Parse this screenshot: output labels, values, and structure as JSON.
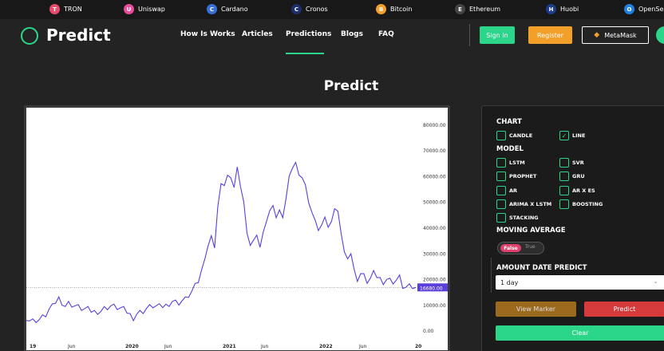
{
  "ticker": [
    {
      "label": "TRON",
      "color": "#e84b6c",
      "glyph": "T",
      "left": 0
    },
    {
      "label": "Uniswap",
      "color": "#e84b9a",
      "glyph": "U",
      "left": 0
    },
    {
      "label": "Cardano",
      "color": "#3b6fd8",
      "glyph": "C",
      "left": 0
    },
    {
      "label": "Cronos",
      "color": "#1c2f6b",
      "glyph": "C",
      "left": 0
    },
    {
      "label": "Bitcoin",
      "color": "#f2a029",
      "glyph": "B",
      "left": 0
    },
    {
      "label": "Ethereum",
      "color": "#444",
      "glyph": "E",
      "left": 0
    },
    {
      "label": "Huobi",
      "color": "#1c3c8a",
      "glyph": "H",
      "left": 0
    },
    {
      "label": "OpenSea",
      "color": "#2081e2",
      "glyph": "O",
      "left": 0
    }
  ],
  "header": {
    "logo": "Predict",
    "nav": [
      "How Is Works",
      "Articles",
      "Predictions",
      "Blogs",
      "FAQ"
    ],
    "signin": "Sign In",
    "register": "Register",
    "metamask": "MetaMask"
  },
  "page_title": "Predict",
  "panel": {
    "chart_title": "CHART",
    "candle": "CANDLE",
    "line": "LINE",
    "model_title": "MODEL",
    "models": [
      "LSTM",
      "SVR",
      "PROPHET",
      "GRU",
      "AR",
      "AR X ES",
      "ARIMA X LSTM",
      "BOOSTING",
      "STACKING"
    ],
    "ma_title": "MOVING AVERAGE",
    "toggle_false": "False",
    "toggle_true": "True",
    "amount_title": "AMOUNT DATE PREDICT",
    "amount_value": "1 day",
    "view_marker": "View Marker",
    "predict": "Predict",
    "clear": "Clear"
  },
  "colors": {
    "accent": "#2bd68a",
    "register": "#f2a029",
    "line": "#5b3fdc",
    "predict": "#d63a3a",
    "marker": "#9b6a1e"
  },
  "chart_data": {
    "type": "line",
    "title": "",
    "xlabel": "",
    "ylabel": "",
    "x_ticks": [
      "19",
      "Jun",
      "2020",
      "Jun",
      "2021",
      "Jun",
      "2022",
      "Jun",
      "20"
    ],
    "y_ticks": [
      "0.00",
      "10000.00",
      "20000.00",
      "30000.00",
      "40000.00",
      "50000.00",
      "60000.00",
      "70000.00",
      "80000.00"
    ],
    "ylim": [
      -4000,
      84000
    ],
    "current_value": "16680.00",
    "current_numeric": 16680,
    "series": [
      {
        "values": [
          3800,
          3900,
          3700,
          4000,
          4200,
          5000,
          6000,
          8000,
          9000,
          11000,
          12500,
          11000,
          9500,
          10500,
          10000,
          9500,
          9000,
          8500,
          8200,
          8000,
          7500,
          7200,
          7400,
          7600,
          8500,
          9000,
          9500,
          9200,
          8800,
          8500,
          8000,
          7200,
          6000,
          5000,
          6500,
          7000,
          7500,
          8500,
          9000,
          9500,
          9300,
          9100,
          9300,
          9700,
          10500,
          11500,
          11000,
          10800,
          11500,
          12000,
          13500,
          15000,
          17000,
          19000,
          23000,
          29000,
          33000,
          36000,
          33000,
          48000,
          56000,
          57000,
          60000,
          58000,
          56000,
          63000,
          57000,
          50000,
          37000,
          34000,
          35000,
          36000,
          33000,
          38000,
          41000,
          47000,
          48000,
          45000,
          47000,
          43000,
          52000,
          60000,
          62000,
          66000,
          60000,
          58000,
          57000,
          49000,
          47000,
          43000,
          38000,
          42000,
          44000,
          39000,
          43000,
          47000,
          45000,
          38000,
          30000,
          29000,
          30000,
          23000,
          20000,
          22000,
          21000,
          19000,
          20000,
          22000,
          21000,
          20000,
          19000,
          20000,
          19500,
          19000,
          19500,
          20500,
          17000,
          16500,
          16800,
          16700,
          16680
        ]
      }
    ]
  }
}
